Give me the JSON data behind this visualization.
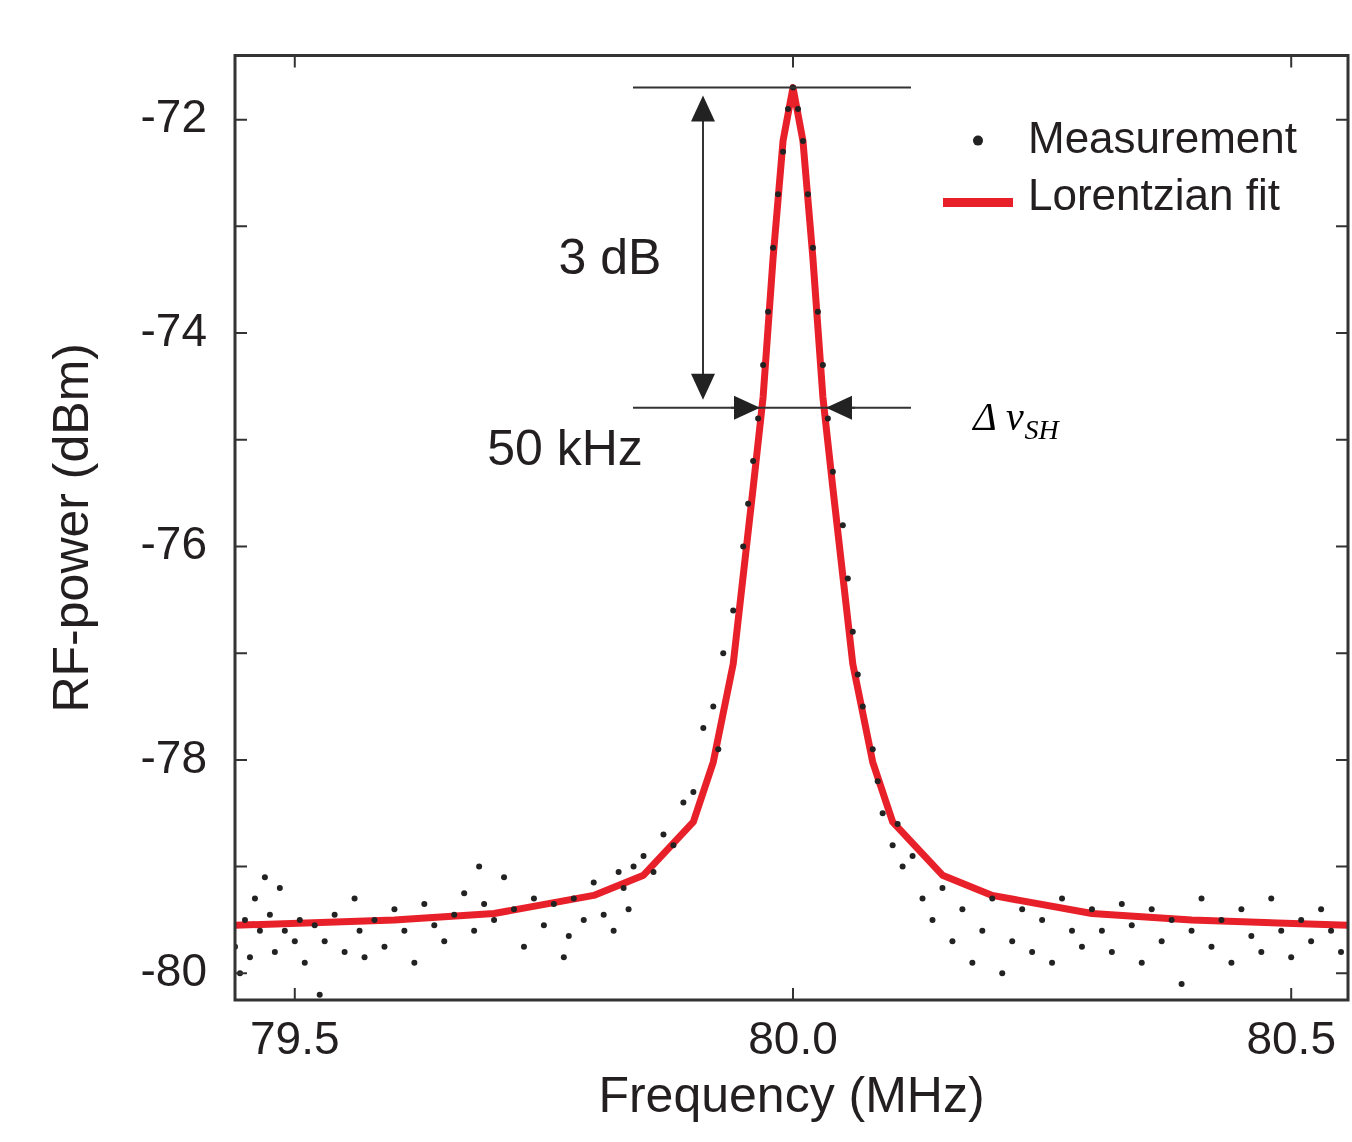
{
  "chart_data": {
    "type": "scatter",
    "xlabel": "Frequency (MHz)",
    "ylabel": "RF-power (dBm)",
    "xlim": [
      79.44,
      80.557
    ],
    "xticks": [
      79.5,
      {
        "value": 80,
        "label": "80.0"
      },
      80.5
    ],
    "ylim": [
      -80.25,
      -71.4
    ],
    "yticks": [
      -80,
      {
        "value": -79,
        "label": null
      },
      -78,
      {
        "value": -77,
        "label": null
      },
      -76,
      {
        "value": -75,
        "label": null
      },
      -74,
      {
        "value": -73,
        "label": null
      },
      -72
    ],
    "grid": false,
    "legend": "top right",
    "tick_labels": "xy",
    "annotations": [
      "3 dB",
      "50 kHz",
      "Δ ν$_{SH}$"
    ],
    "series": [
      {
        "name": "Measurement",
        "color": "#222222",
        "marker": "circle",
        "x": [
          79.44,
          79.445,
          79.45,
          79.455,
          79.46,
          79.465,
          79.47,
          79.475,
          79.48,
          79.485,
          79.49,
          79.5,
          79.505,
          79.51,
          79.52,
          79.525,
          79.53,
          79.54,
          79.55,
          79.56,
          79.565,
          79.57,
          79.58,
          79.59,
          79.6,
          79.61,
          79.62,
          79.63,
          79.64,
          79.65,
          79.66,
          79.67,
          79.68,
          79.685,
          79.69,
          79.7,
          79.71,
          79.72,
          79.73,
          79.74,
          79.75,
          79.76,
          79.77,
          79.775,
          79.78,
          79.79,
          79.8,
          79.81,
          79.82,
          79.825,
          79.83,
          79.835,
          79.84,
          79.85,
          79.86,
          79.87,
          79.88,
          79.89,
          79.9,
          79.91,
          79.92,
          79.925,
          79.93,
          79.94,
          79.95,
          79.955,
          79.96,
          79.965,
          79.97,
          79.975,
          79.98,
          79.985,
          79.99,
          79.995,
          80.0,
          80.005,
          80.01,
          80.015,
          80.02,
          80.025,
          80.03,
          80.035,
          80.04,
          80.05,
          80.055,
          80.06,
          80.065,
          80.07,
          80.08,
          80.085,
          80.09,
          80.1,
          80.105,
          80.11,
          80.12,
          80.13,
          80.14,
          80.15,
          80.16,
          80.17,
          80.18,
          80.19,
          80.2,
          80.21,
          80.22,
          80.23,
          80.24,
          80.25,
          80.26,
          80.27,
          80.28,
          80.29,
          80.3,
          80.31,
          80.32,
          80.33,
          80.34,
          80.35,
          80.36,
          80.37,
          80.38,
          80.39,
          80.4,
          80.41,
          80.42,
          80.43,
          80.44,
          80.45,
          80.46,
          80.47,
          80.48,
          80.49,
          80.5,
          80.51,
          80.52,
          80.53,
          80.54,
          80.55
        ],
        "values": [
          -79.75,
          -80.0,
          -79.5,
          -79.85,
          -79.3,
          -79.6,
          -79.1,
          -79.45,
          -79.8,
          -79.2,
          -79.6,
          -79.7,
          -79.5,
          -79.9,
          -79.55,
          -80.2,
          -79.7,
          -79.45,
          -79.8,
          -79.3,
          -79.6,
          -79.85,
          -79.5,
          -79.75,
          -79.4,
          -79.6,
          -79.9,
          -79.35,
          -79.55,
          -79.7,
          -79.45,
          -79.25,
          -79.6,
          -79.0,
          -79.35,
          -79.5,
          -79.1,
          -79.4,
          -79.75,
          -79.3,
          -79.55,
          -79.35,
          -79.85,
          -79.65,
          -79.3,
          -79.5,
          -79.15,
          -79.45,
          -79.6,
          -79.05,
          -79.2,
          -79.4,
          -79.0,
          -78.9,
          -79.05,
          -78.7,
          -78.8,
          -78.4,
          -78.3,
          -77.7,
          -77.5,
          -77.9,
          -77.0,
          -76.6,
          -76.0,
          -75.6,
          -75.2,
          -74.8,
          -74.3,
          -73.8,
          -73.2,
          -72.7,
          -72.3,
          -71.9,
          -71.7,
          -71.9,
          -72.2,
          -72.7,
          -73.2,
          -73.8,
          -74.3,
          -74.8,
          -75.3,
          -75.8,
          -76.3,
          -76.8,
          -77.2,
          -77.5,
          -77.9,
          -78.2,
          -78.5,
          -78.8,
          -78.6,
          -79.0,
          -78.9,
          -79.3,
          -79.5,
          -79.2,
          -79.7,
          -79.4,
          -79.9,
          -79.6,
          -79.3,
          -80.0,
          -79.7,
          -79.4,
          -79.8,
          -79.5,
          -79.9,
          -79.3,
          -79.6,
          -79.75,
          -79.4,
          -79.6,
          -79.8,
          -79.35,
          -79.55,
          -79.9,
          -79.4,
          -79.7,
          -79.5,
          -80.1,
          -79.6,
          -79.3,
          -79.75,
          -79.5,
          -79.9,
          -79.4,
          -79.65,
          -79.8,
          -79.3,
          -79.6,
          -79.85,
          -79.5,
          -79.7,
          -79.4,
          -79.6,
          -79.8
        ]
      },
      {
        "name": "Lorentzian fit",
        "type": "line",
        "color": "#e8202a",
        "line_style": "solid",
        "marker": "none",
        "x": [
          79.44,
          79.6,
          79.7,
          79.8,
          79.85,
          79.9,
          79.92,
          79.94,
          79.96,
          79.97,
          79.98,
          79.99,
          80.0,
          80.01,
          80.02,
          80.03,
          80.04,
          80.06,
          80.08,
          80.1,
          80.15,
          80.2,
          80.3,
          80.4,
          80.557
        ],
        "values": [
          -79.55,
          -79.5,
          -79.44,
          -79.27,
          -79.08,
          -78.58,
          -78.02,
          -77.1,
          -75.45,
          -74.6,
          -73.3,
          -72.2,
          -71.7,
          -72.2,
          -73.3,
          -74.6,
          -75.45,
          -77.1,
          -78.02,
          -78.58,
          -79.08,
          -79.27,
          -79.44,
          -79.5,
          -79.55
        ]
      }
    ]
  }
}
